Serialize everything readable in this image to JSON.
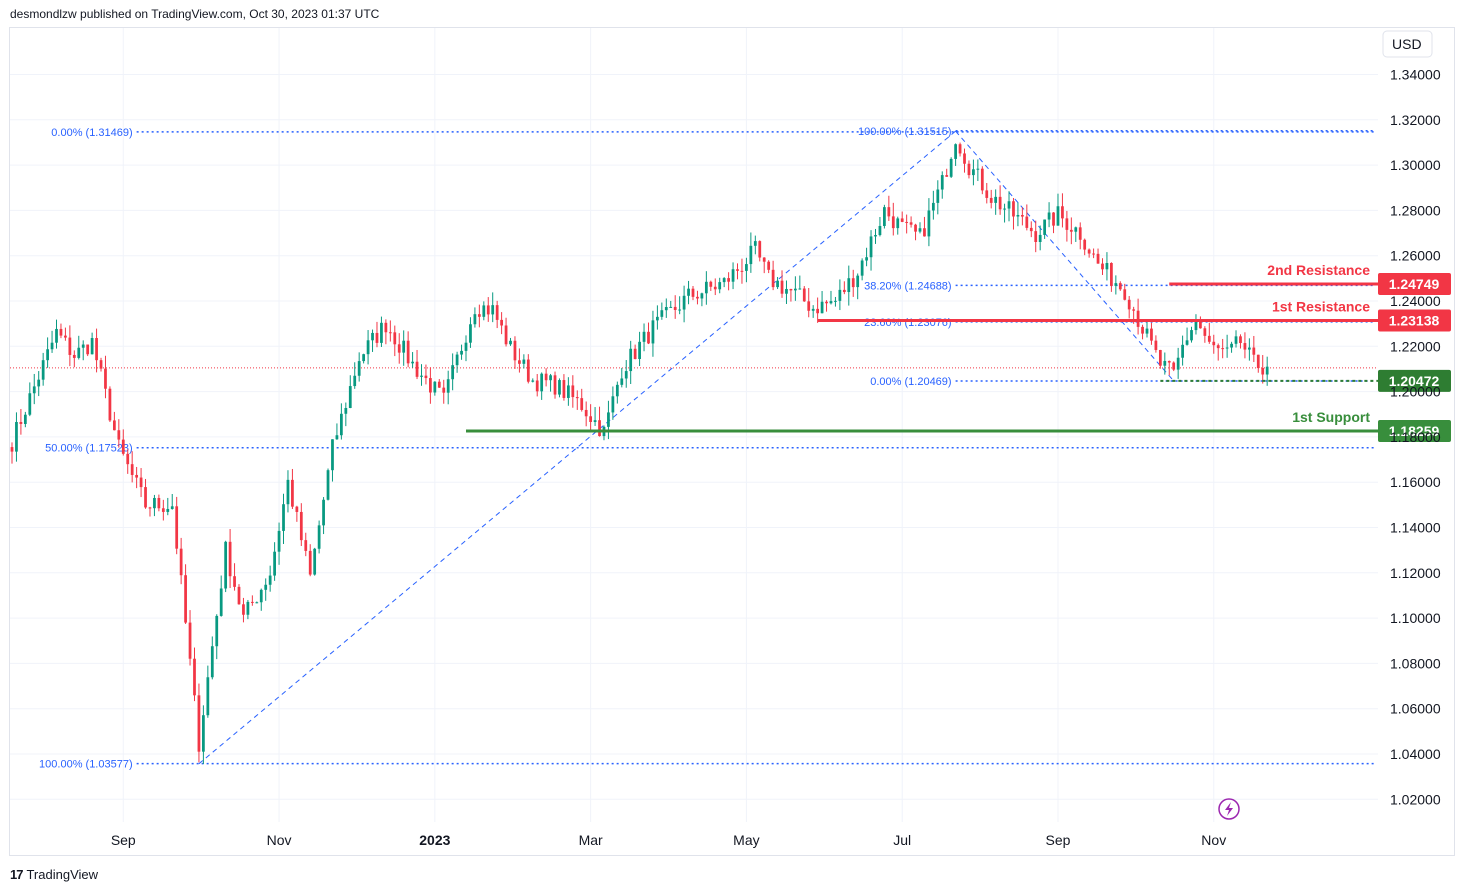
{
  "header": {
    "publisher": "desmondlzw published on TradingView.com, Oct 30, 2023 01:37 UTC"
  },
  "brand": {
    "name": "TradingView",
    "logo": "17"
  },
  "chart_data": {
    "type": "candlestick",
    "currency": "USD",
    "ylim": [
      1.01,
      1.35
    ],
    "y_ticks": [
      "1.34000",
      "1.32000",
      "1.30000",
      "1.28000",
      "1.26000",
      "1.24000",
      "1.22000",
      "1.20000",
      "1.18000",
      "1.16000",
      "1.14000",
      "1.12000",
      "1.10000",
      "1.08000",
      "1.06000",
      "1.04000",
      "1.02000"
    ],
    "x_ticks": [
      {
        "label": "Sep",
        "idx": 25,
        "bold": false
      },
      {
        "label": "Nov",
        "idx": 60,
        "bold": false
      },
      {
        "label": "2023",
        "idx": 95,
        "bold": true
      },
      {
        "label": "Mar",
        "idx": 130,
        "bold": false
      },
      {
        "label": "May",
        "idx": 165,
        "bold": false
      },
      {
        "label": "Jul",
        "idx": 200,
        "bold": false
      },
      {
        "label": "Sep",
        "idx": 235,
        "bold": false
      },
      {
        "label": "Nov",
        "idx": 270,
        "bold": false
      }
    ],
    "x_total": 306,
    "last_price": 1.2105,
    "anchors": [
      [
        0,
        1.178
      ],
      [
        10,
        1.226
      ],
      [
        14,
        1.216
      ],
      [
        18,
        1.222
      ],
      [
        24,
        1.175
      ],
      [
        30,
        1.15
      ],
      [
        36,
        1.15
      ],
      [
        42,
        1.045
      ],
      [
        48,
        1.13
      ],
      [
        52,
        1.1
      ],
      [
        58,
        1.12
      ],
      [
        62,
        1.16
      ],
      [
        67,
        1.118
      ],
      [
        72,
        1.175
      ],
      [
        78,
        1.215
      ],
      [
        84,
        1.23
      ],
      [
        90,
        1.212
      ],
      [
        97,
        1.196
      ],
      [
        104,
        1.238
      ],
      [
        108,
        1.236
      ],
      [
        112,
        1.219
      ],
      [
        117,
        1.205
      ],
      [
        122,
        1.203
      ],
      [
        128,
        1.194
      ],
      [
        133,
        1.182
      ],
      [
        137,
        1.21
      ],
      [
        144,
        1.228
      ],
      [
        152,
        1.242
      ],
      [
        160,
        1.248
      ],
      [
        167,
        1.262
      ],
      [
        170,
        1.25
      ],
      [
        176,
        1.243
      ],
      [
        180,
        1.237
      ],
      [
        185,
        1.24
      ],
      [
        190,
        1.253
      ],
      [
        196,
        1.28
      ],
      [
        200,
        1.272
      ],
      [
        204,
        1.268
      ],
      [
        209,
        1.292
      ],
      [
        212,
        1.313
      ],
      [
        215,
        1.3
      ],
      [
        220,
        1.286
      ],
      [
        225,
        1.278
      ],
      [
        230,
        1.27
      ],
      [
        235,
        1.278
      ],
      [
        240,
        1.27
      ],
      [
        244,
        1.256
      ],
      [
        250,
        1.245
      ],
      [
        254,
        1.228
      ],
      [
        258,
        1.212
      ],
      [
        261,
        1.207
      ],
      [
        263,
        1.22
      ],
      [
        266,
        1.232
      ],
      [
        269,
        1.22
      ],
      [
        273,
        1.216
      ],
      [
        276,
        1.222
      ],
      [
        279,
        1.212
      ],
      [
        282,
        1.211
      ]
    ],
    "fib_levels": [
      {
        "label": "0.00% (1.31469)",
        "price": 1.31469,
        "x_from": 28,
        "x_to": 306,
        "text_idx": 28
      },
      {
        "label": "50.00% (1.17523)",
        "price": 1.17523,
        "x_from": 28,
        "x_to": 306,
        "text_idx": 28
      },
      {
        "label": "100.00% (1.03577)",
        "price": 1.03577,
        "x_from": 28,
        "x_to": 306,
        "text_idx": 28
      },
      {
        "label": "100.00% (1.31515)",
        "price": 1.31515,
        "x_from": 212,
        "x_to": 306,
        "text_idx": 212
      },
      {
        "label": "38.20% (1.24688)",
        "price": 1.24688,
        "x_from": 212,
        "x_to": 306,
        "text_idx": 212
      },
      {
        "label": "23.60% (1.23076)",
        "price": 1.23076,
        "x_from": 212,
        "x_to": 306,
        "text_idx": 212
      },
      {
        "label": "0.00% (1.20469)",
        "price": 1.20469,
        "x_from": 212,
        "x_to": 306,
        "text_idx": 212
      }
    ],
    "trend_lines": [
      {
        "from": [
          42,
          1.0357
        ],
        "to": [
          212,
          1.315
        ]
      },
      {
        "from": [
          212,
          1.315
        ],
        "to": [
          261,
          1.2047
        ]
      }
    ],
    "levels": [
      {
        "label": "2nd Resistance",
        "price": 1.24749,
        "tag": "1.24749",
        "x_from": 260,
        "color": "#f23645"
      },
      {
        "label": "1st Resistance",
        "price": 1.23138,
        "tag": "1.23138",
        "x_from": 181,
        "color": "#f23645"
      },
      {
        "label": "",
        "price": 1.20472,
        "tag": "1.20472",
        "x_from": 258,
        "color": "#2e7d32",
        "dashed": true
      },
      {
        "label": "1st Support",
        "price": 1.18259,
        "tag": "1.18259",
        "x_from": 102,
        "color": "#388e3c"
      }
    ],
    "colors": {
      "up": "#089981",
      "down": "#f23645",
      "fib": "#2962ff",
      "grid": "#f0f3fa",
      "last": "#f23645"
    }
  }
}
